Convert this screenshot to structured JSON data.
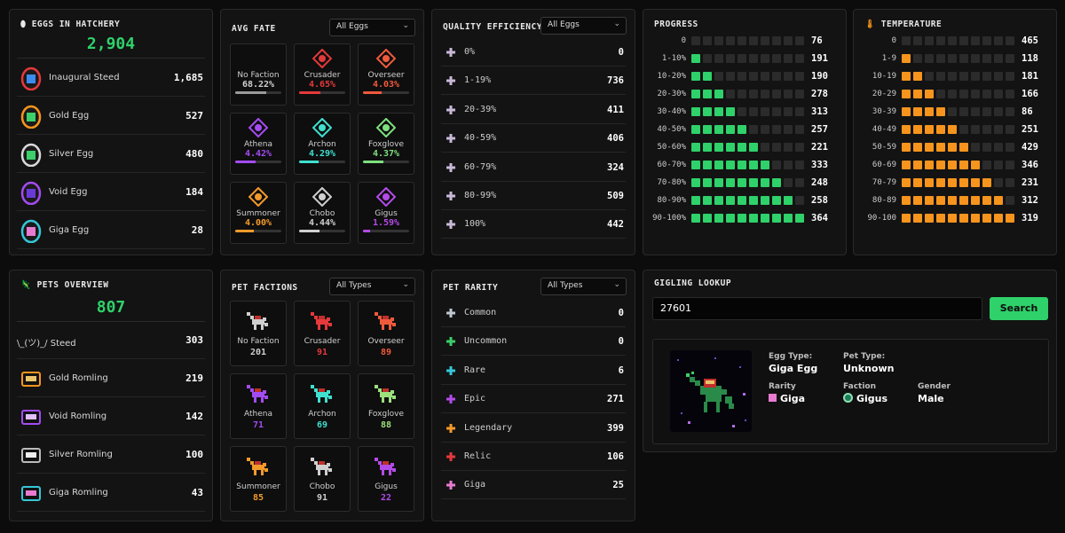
{
  "hatchery": {
    "title": "EGGS IN HATCHERY",
    "total": "2,904",
    "rows": [
      {
        "label": "Inaugural Steed",
        "value": "1,685"
      },
      {
        "label": "Gold Egg",
        "value": "527"
      },
      {
        "label": "Silver Egg",
        "value": "480"
      },
      {
        "label": "Void Egg",
        "value": "184"
      },
      {
        "label": "Giga Egg",
        "value": "28"
      }
    ]
  },
  "avg_fate": {
    "title": "AVG FATE",
    "filter": "All Eggs",
    "cards": [
      {
        "name": "No Faction",
        "value": "68.22%",
        "pct": 68.22,
        "color": "#9a9a9a"
      },
      {
        "name": "Crusader",
        "value": "4.65%",
        "pct": 46,
        "color": "#e5393b"
      },
      {
        "name": "Overseer",
        "value": "4.03%",
        "pct": 40,
        "color": "#f05a3c"
      },
      {
        "name": "Athena",
        "value": "4.42%",
        "pct": 44,
        "color": "#a34bf2"
      },
      {
        "name": "Archon",
        "value": "4.29%",
        "pct": 43,
        "color": "#3fe0d0"
      },
      {
        "name": "Foxglove",
        "value": "4.37%",
        "pct": 44,
        "color": "#7ee07e"
      },
      {
        "name": "Summoner",
        "value": "4.00%",
        "pct": 40,
        "color": "#f39a2b"
      },
      {
        "name": "Chobo",
        "value": "4.44%",
        "pct": 44,
        "color": "#cfcfcf"
      },
      {
        "name": "Gigus",
        "value": "1.59%",
        "pct": 16,
        "color": "#b34be8"
      }
    ]
  },
  "quality": {
    "title": "QUALITY EFFICIENCY",
    "filter": "All Eggs",
    "rows": [
      {
        "label": "0%",
        "value": "0"
      },
      {
        "label": "1-19%",
        "value": "736"
      },
      {
        "label": "20-39%",
        "value": "411"
      },
      {
        "label": "40-59%",
        "value": "406"
      },
      {
        "label": "60-79%",
        "value": "324"
      },
      {
        "label": "80-99%",
        "value": "509"
      },
      {
        "label": "100%",
        "value": "442"
      }
    ]
  },
  "progress": {
    "title": "PROGRESS",
    "color": "#2fd16a",
    "rows": [
      {
        "label": "0",
        "filled": 0,
        "value": "76"
      },
      {
        "label": "1-10%",
        "filled": 1,
        "value": "191"
      },
      {
        "label": "10-20%",
        "filled": 2,
        "value": "190"
      },
      {
        "label": "20-30%",
        "filled": 3,
        "value": "278"
      },
      {
        "label": "30-40%",
        "filled": 4,
        "value": "313"
      },
      {
        "label": "40-50%",
        "filled": 5,
        "value": "257"
      },
      {
        "label": "50-60%",
        "filled": 6,
        "value": "221"
      },
      {
        "label": "60-70%",
        "filled": 7,
        "value": "333"
      },
      {
        "label": "70-80%",
        "filled": 8,
        "value": "248"
      },
      {
        "label": "80-90%",
        "filled": 9,
        "value": "258"
      },
      {
        "label": "90-100%",
        "filled": 10,
        "value": "364"
      }
    ]
  },
  "temperature": {
    "title": "TEMPERATURE",
    "color": "#f7941d",
    "rows": [
      {
        "label": "0",
        "filled": 0,
        "value": "465"
      },
      {
        "label": "1-9",
        "filled": 1,
        "value": "118"
      },
      {
        "label": "10-19",
        "filled": 2,
        "value": "181"
      },
      {
        "label": "20-29",
        "filled": 3,
        "value": "166"
      },
      {
        "label": "30-39",
        "filled": 4,
        "value": "86"
      },
      {
        "label": "40-49",
        "filled": 5,
        "value": "251"
      },
      {
        "label": "50-59",
        "filled": 6,
        "value": "429"
      },
      {
        "label": "60-69",
        "filled": 7,
        "value": "346"
      },
      {
        "label": "70-79",
        "filled": 8,
        "value": "231"
      },
      {
        "label": "80-89",
        "filled": 9,
        "value": "312"
      },
      {
        "label": "90-100",
        "filled": 10,
        "value": "319"
      }
    ]
  },
  "pets": {
    "title": "PETS OVERVIEW",
    "total": "807",
    "rows": [
      {
        "label": "\\_(ツ)_/ Steed",
        "value": "303"
      },
      {
        "label": "Gold Romling",
        "value": "219"
      },
      {
        "label": "Void Romling",
        "value": "142"
      },
      {
        "label": "Silver Romling",
        "value": "100"
      },
      {
        "label": "Giga Romling",
        "value": "43"
      }
    ]
  },
  "factions": {
    "title": "PET FACTIONS",
    "filter": "All Types",
    "cards": [
      {
        "name": "No Faction",
        "value": "201",
        "color": "#cfcfcf"
      },
      {
        "name": "Crusader",
        "value": "91",
        "color": "#e5393b"
      },
      {
        "name": "Overseer",
        "value": "89",
        "color": "#f05a3c"
      },
      {
        "name": "Athena",
        "value": "71",
        "color": "#a34bf2"
      },
      {
        "name": "Archon",
        "value": "69",
        "color": "#3fe0d0"
      },
      {
        "name": "Foxglove",
        "value": "88",
        "color": "#9de07e"
      },
      {
        "name": "Summoner",
        "value": "85",
        "color": "#f39a2b"
      },
      {
        "name": "Chobo",
        "value": "91",
        "color": "#cfcfcf"
      },
      {
        "name": "Gigus",
        "value": "22",
        "color": "#b34be8"
      }
    ]
  },
  "rarity": {
    "title": "PET RARITY",
    "filter": "All Types",
    "rows": [
      {
        "label": "Common",
        "value": "0",
        "color": "#bfc7d0"
      },
      {
        "label": "Uncommon",
        "value": "0",
        "color": "#3ccf6a"
      },
      {
        "label": "Rare",
        "value": "6",
        "color": "#36c6d8"
      },
      {
        "label": "Epic",
        "value": "271",
        "color": "#b44be8"
      },
      {
        "label": "Legendary",
        "value": "399",
        "color": "#f39a2b"
      },
      {
        "label": "Relic",
        "value": "106",
        "color": "#e5393b"
      },
      {
        "label": "Giga",
        "value": "25",
        "color": "#e87bd0"
      }
    ]
  },
  "lookup": {
    "title": "GIGLING LOOKUP",
    "input_value": "27601",
    "button": "Search",
    "egg_type_label": "Egg Type:",
    "egg_type": "Giga Egg",
    "pet_type_label": "Pet Type:",
    "pet_type": "Unknown",
    "rarity_label": "Rarity",
    "rarity": "Giga",
    "faction_label": "Faction",
    "faction": "Gigus",
    "gender_label": "Gender",
    "gender": "Male"
  }
}
